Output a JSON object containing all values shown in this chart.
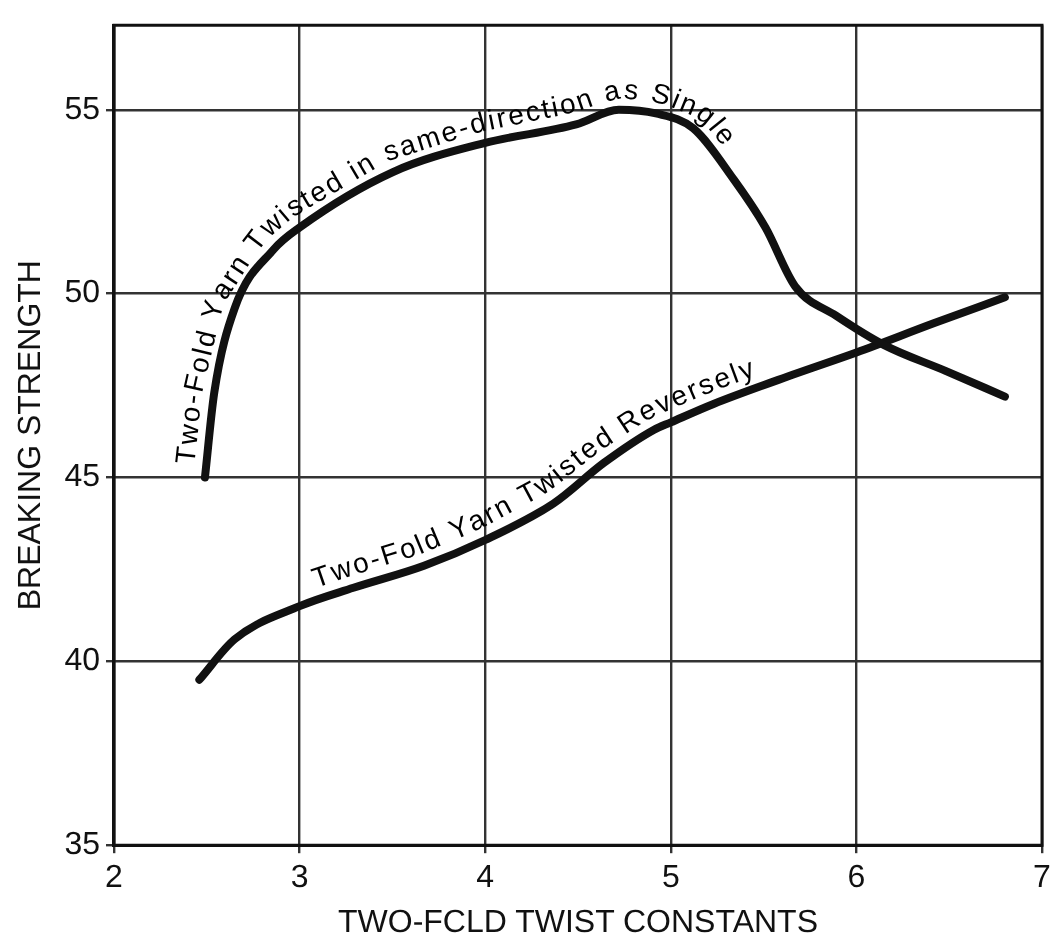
{
  "chart_data": {
    "type": "line",
    "xlabel": "TWO-FCLD TWIST CONSTANTS",
    "ylabel": "BREAKING STRENGTH",
    "xlim": [
      2,
      7
    ],
    "xticks": [
      2,
      3,
      4,
      5,
      6,
      7
    ],
    "ylim": [
      35,
      57.3
    ],
    "yticks": [
      35,
      40,
      45,
      50,
      55
    ],
    "grid": true,
    "legend": false,
    "marker": "none",
    "line_style": "solid",
    "series": [
      {
        "name": "Two-Fold Yarn Twisted in same-direction as Single",
        "color": "#111111",
        "x": [
          2.49,
          2.54,
          2.65,
          2.86,
          3.0,
          3.5,
          4.0,
          4.49,
          4.72,
          4.92,
          5.12,
          5.34,
          5.51,
          5.67,
          5.89,
          6.15,
          6.48,
          6.8
        ],
        "values": [
          45,
          47.3,
          49.6,
          51.2,
          51.8,
          53.3,
          54.1,
          54.6,
          55.0,
          54.9,
          54.5,
          53.1,
          51.8,
          50.2,
          49.4,
          48.6,
          47.9,
          47.2
        ]
      },
      {
        "name": "Two-Fold Yarn Twisted Reversely",
        "color": "#111111",
        "x": [
          2.46,
          2.65,
          3.0,
          3.29,
          3.67,
          4.0,
          4.37,
          4.64,
          4.91,
          5.0,
          5.23,
          5.66,
          6.0,
          6.42,
          6.8
        ],
        "values": [
          39.5,
          40.6,
          41.5,
          42.0,
          42.6,
          43.3,
          44.3,
          45.4,
          46.3,
          46.5,
          47.0,
          47.8,
          48.4,
          49.2,
          49.9
        ]
      }
    ]
  }
}
